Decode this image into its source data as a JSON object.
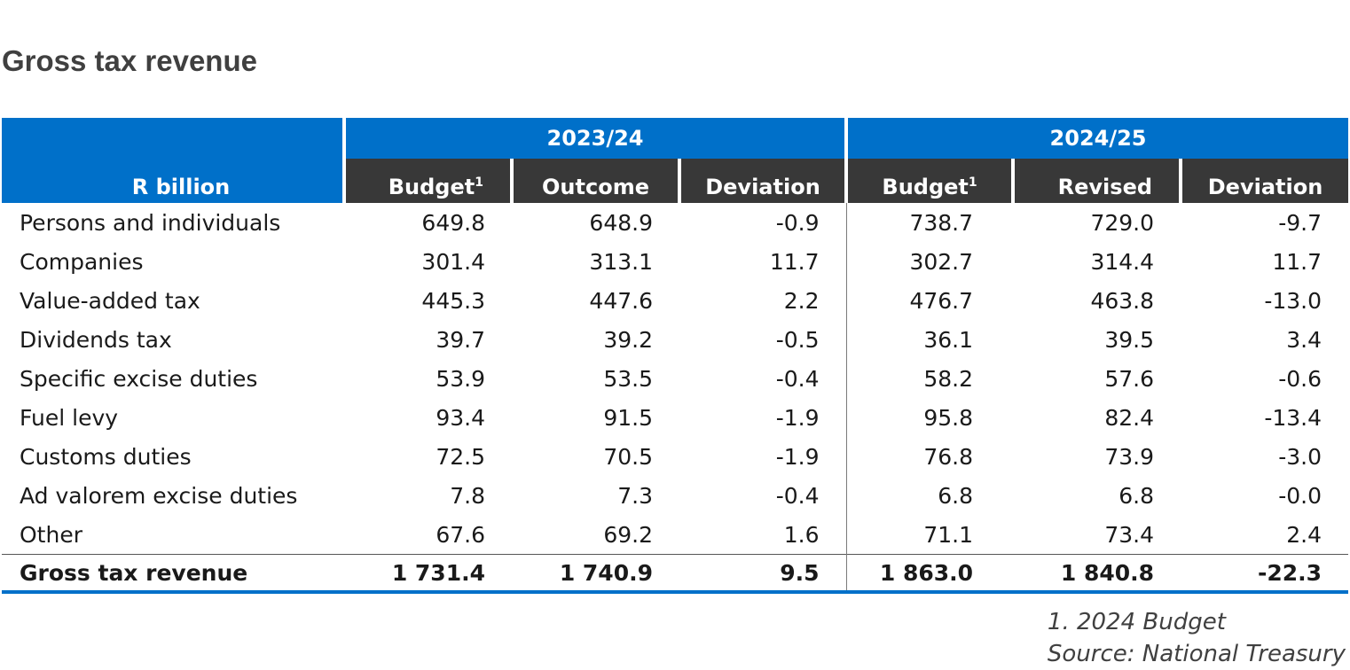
{
  "title": "Gross tax revenue",
  "table": {
    "corner_label": "R billion",
    "years": [
      "2023/24",
      "2024/25"
    ],
    "sub_headers": [
      {
        "label": "Budget",
        "sup": "1"
      },
      {
        "label": "Outcome",
        "sup": ""
      },
      {
        "label": "Deviation",
        "sup": ""
      },
      {
        "label": "Budget",
        "sup": "1"
      },
      {
        "label": "Revised",
        "sup": ""
      },
      {
        "label": "Deviation",
        "sup": ""
      }
    ],
    "rows": [
      {
        "label": "Persons and individuals",
        "values": [
          "649.8",
          "648.9",
          "-0.9",
          "738.7",
          "729.0",
          "-9.7"
        ]
      },
      {
        "label": "Companies",
        "values": [
          "301.4",
          "313.1",
          "11.7",
          "302.7",
          "314.4",
          "11.7"
        ]
      },
      {
        "label": "Value-added tax",
        "values": [
          "445.3",
          "447.6",
          "2.2",
          "476.7",
          "463.8",
          "-13.0"
        ]
      },
      {
        "label": "Dividends tax",
        "values": [
          "39.7",
          "39.2",
          "-0.5",
          "36.1",
          "39.5",
          "3.4"
        ]
      },
      {
        "label": "Specific excise duties",
        "values": [
          "53.9",
          "53.5",
          "-0.4",
          "58.2",
          "57.6",
          "-0.6"
        ]
      },
      {
        "label": "Fuel levy",
        "values": [
          "93.4",
          "91.5",
          "-1.9",
          "95.8",
          "82.4",
          "-13.4"
        ]
      },
      {
        "label": "Customs duties",
        "values": [
          "72.5",
          "70.5",
          "-1.9",
          "76.8",
          "73.9",
          "-3.0"
        ]
      },
      {
        "label": "Ad valorem excise duties",
        "values": [
          "7.8",
          "7.3",
          "-0.4",
          "6.8",
          "6.8",
          "-0.0"
        ]
      },
      {
        "label": "Other",
        "values": [
          "67.6",
          "69.2",
          "1.6",
          "71.1",
          "73.4",
          "2.4"
        ]
      }
    ],
    "total": {
      "label": "Gross tax revenue",
      "values": [
        "1 731.4",
        "1 740.9",
        "9.5",
        "1 863.0",
        "1 840.8",
        "-22.3"
      ]
    }
  },
  "footnotes": [
    "1. 2024 Budget",
    "Source: National Treasury"
  ],
  "colors": {
    "header_blue": "#0070c9",
    "subheader_dark": "#383838",
    "title_gray": "#404040"
  }
}
